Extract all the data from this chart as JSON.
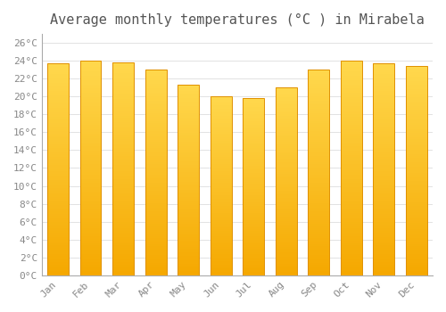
{
  "title": "Average monthly temperatures (°C ) in Mirabela",
  "months": [
    "Jan",
    "Feb",
    "Mar",
    "Apr",
    "May",
    "Jun",
    "Jul",
    "Aug",
    "Sep",
    "Oct",
    "Nov",
    "Dec"
  ],
  "values": [
    23.7,
    24.0,
    23.8,
    23.0,
    21.3,
    20.0,
    19.8,
    21.0,
    23.0,
    24.0,
    23.7,
    23.4
  ],
  "bar_color_bottom": "#F5A800",
  "bar_color_top": "#FFD84D",
  "bar_edge_color": "#E09000",
  "ylim": [
    0,
    27
  ],
  "ytick_step": 2,
  "background_color": "#FFFFFF",
  "grid_color": "#DDDDDD",
  "title_fontsize": 11,
  "tick_fontsize": 8,
  "tick_color": "#888888",
  "font_family": "monospace"
}
